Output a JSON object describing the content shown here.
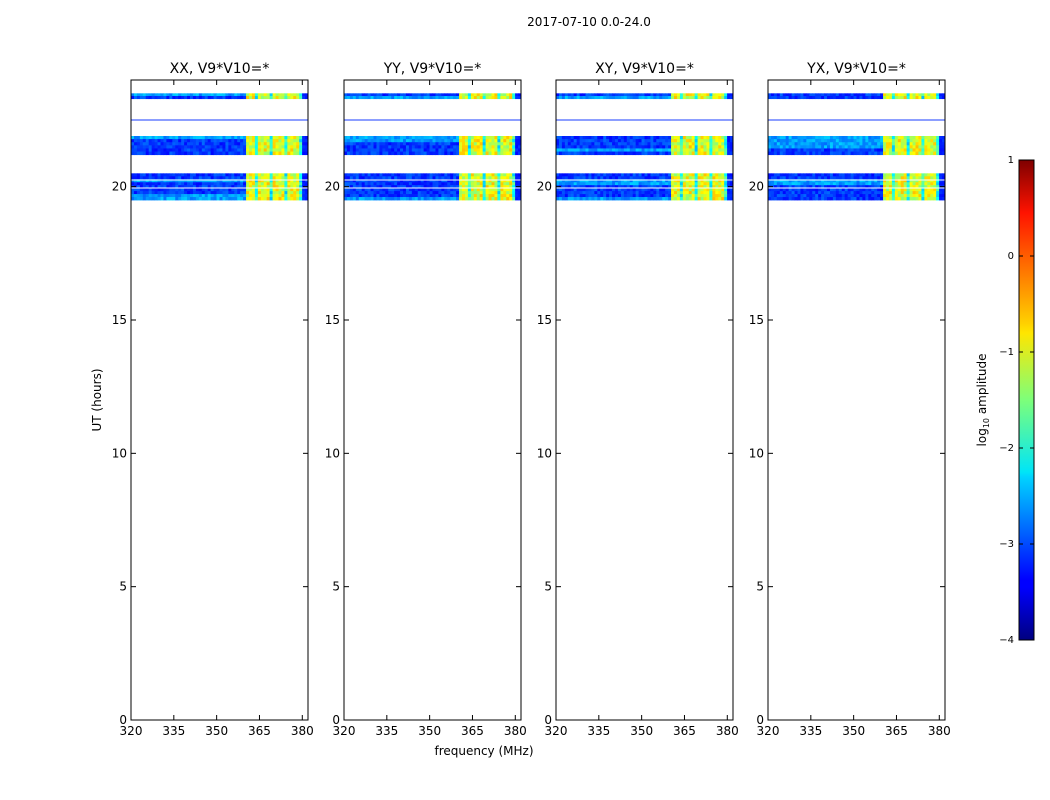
{
  "figure": {
    "suptitle": "2017-07-10 0.0-24.0",
    "xlabel": "frequency (MHz)",
    "ylabel": "UT (hours)"
  },
  "chart_data": {
    "type": "heatmap",
    "x_ticks": [
      320,
      335,
      350,
      365,
      380
    ],
    "y_ticks": [
      0,
      5,
      10,
      15,
      20
    ],
    "xlim": [
      320,
      382
    ],
    "ylim": [
      0,
      24
    ],
    "panels": [
      {
        "title": "XX, V9*V10=*",
        "seed": 11
      },
      {
        "title": "YY, V9*V10=*",
        "seed": 23
      },
      {
        "title": "XY, V9*V10=*",
        "seed": 37
      },
      {
        "title": "YX, V9*V10=*",
        "seed": 53
      }
    ],
    "data_bands_hours": [
      [
        19.5,
        20.5
      ],
      [
        21.2,
        21.9
      ],
      [
        23.3,
        23.5
      ]
    ],
    "thin_lines_hours": [
      22.5
    ],
    "rfi_band_mhz": [
      360,
      380
    ],
    "colorbar": {
      "label": "log10 amplitude",
      "label_base": "log",
      "label_sub": "10",
      "label_rest": " amplitude",
      "range": [
        -4,
        1
      ],
      "ticks": [
        -4,
        -3,
        -2,
        -1,
        0,
        1
      ],
      "tick_labels": [
        "−4",
        "−3",
        "−2",
        "−1",
        "0",
        "1"
      ]
    }
  }
}
